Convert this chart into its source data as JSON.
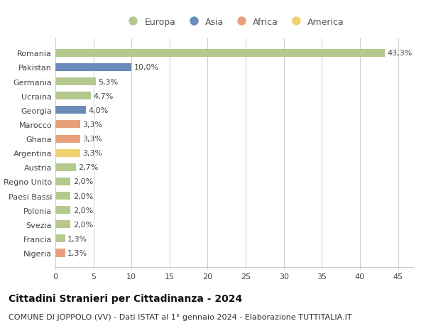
{
  "countries": [
    "Romania",
    "Pakistan",
    "Germania",
    "Ucraina",
    "Georgia",
    "Marocco",
    "Ghana",
    "Argentina",
    "Austria",
    "Regno Unito",
    "Paesi Bassi",
    "Polonia",
    "Svezia",
    "Francia",
    "Nigeria"
  ],
  "values": [
    43.3,
    10.0,
    5.3,
    4.7,
    4.0,
    3.3,
    3.3,
    3.3,
    2.7,
    2.0,
    2.0,
    2.0,
    2.0,
    1.3,
    1.3
  ],
  "labels": [
    "43,3%",
    "10,0%",
    "5,3%",
    "4,7%",
    "4,0%",
    "3,3%",
    "3,3%",
    "3,3%",
    "2,7%",
    "2,0%",
    "2,0%",
    "2,0%",
    "2,0%",
    "1,3%",
    "1,3%"
  ],
  "bar_colors": [
    "#b5c98e",
    "#6b8cba",
    "#b5c98e",
    "#b5c98e",
    "#6b8cba",
    "#e8a07a",
    "#e8a07a",
    "#f0d070",
    "#b5c98e",
    "#b5c98e",
    "#b5c98e",
    "#b5c98e",
    "#b5c98e",
    "#b5c98e",
    "#e8a07a"
  ],
  "legend_colors": [
    "#b5c98e",
    "#6b8cba",
    "#e8a07a",
    "#f0d070"
  ],
  "legend_labels": [
    "Europa",
    "Asia",
    "Africa",
    "America"
  ],
  "title": "Cittadini Stranieri per Cittadinanza - 2024",
  "subtitle": "COMUNE DI JOPPOLO (VV) - Dati ISTAT al 1° gennaio 2024 - Elaborazione TUTTITALIA.IT",
  "xlim": [
    0,
    47
  ],
  "xticks": [
    0,
    5,
    10,
    15,
    20,
    25,
    30,
    35,
    40,
    45
  ],
  "background_color": "#ffffff",
  "grid_color": "#cccccc",
  "title_fontsize": 10,
  "subtitle_fontsize": 8,
  "label_fontsize": 8,
  "tick_fontsize": 8,
  "legend_fontsize": 9
}
